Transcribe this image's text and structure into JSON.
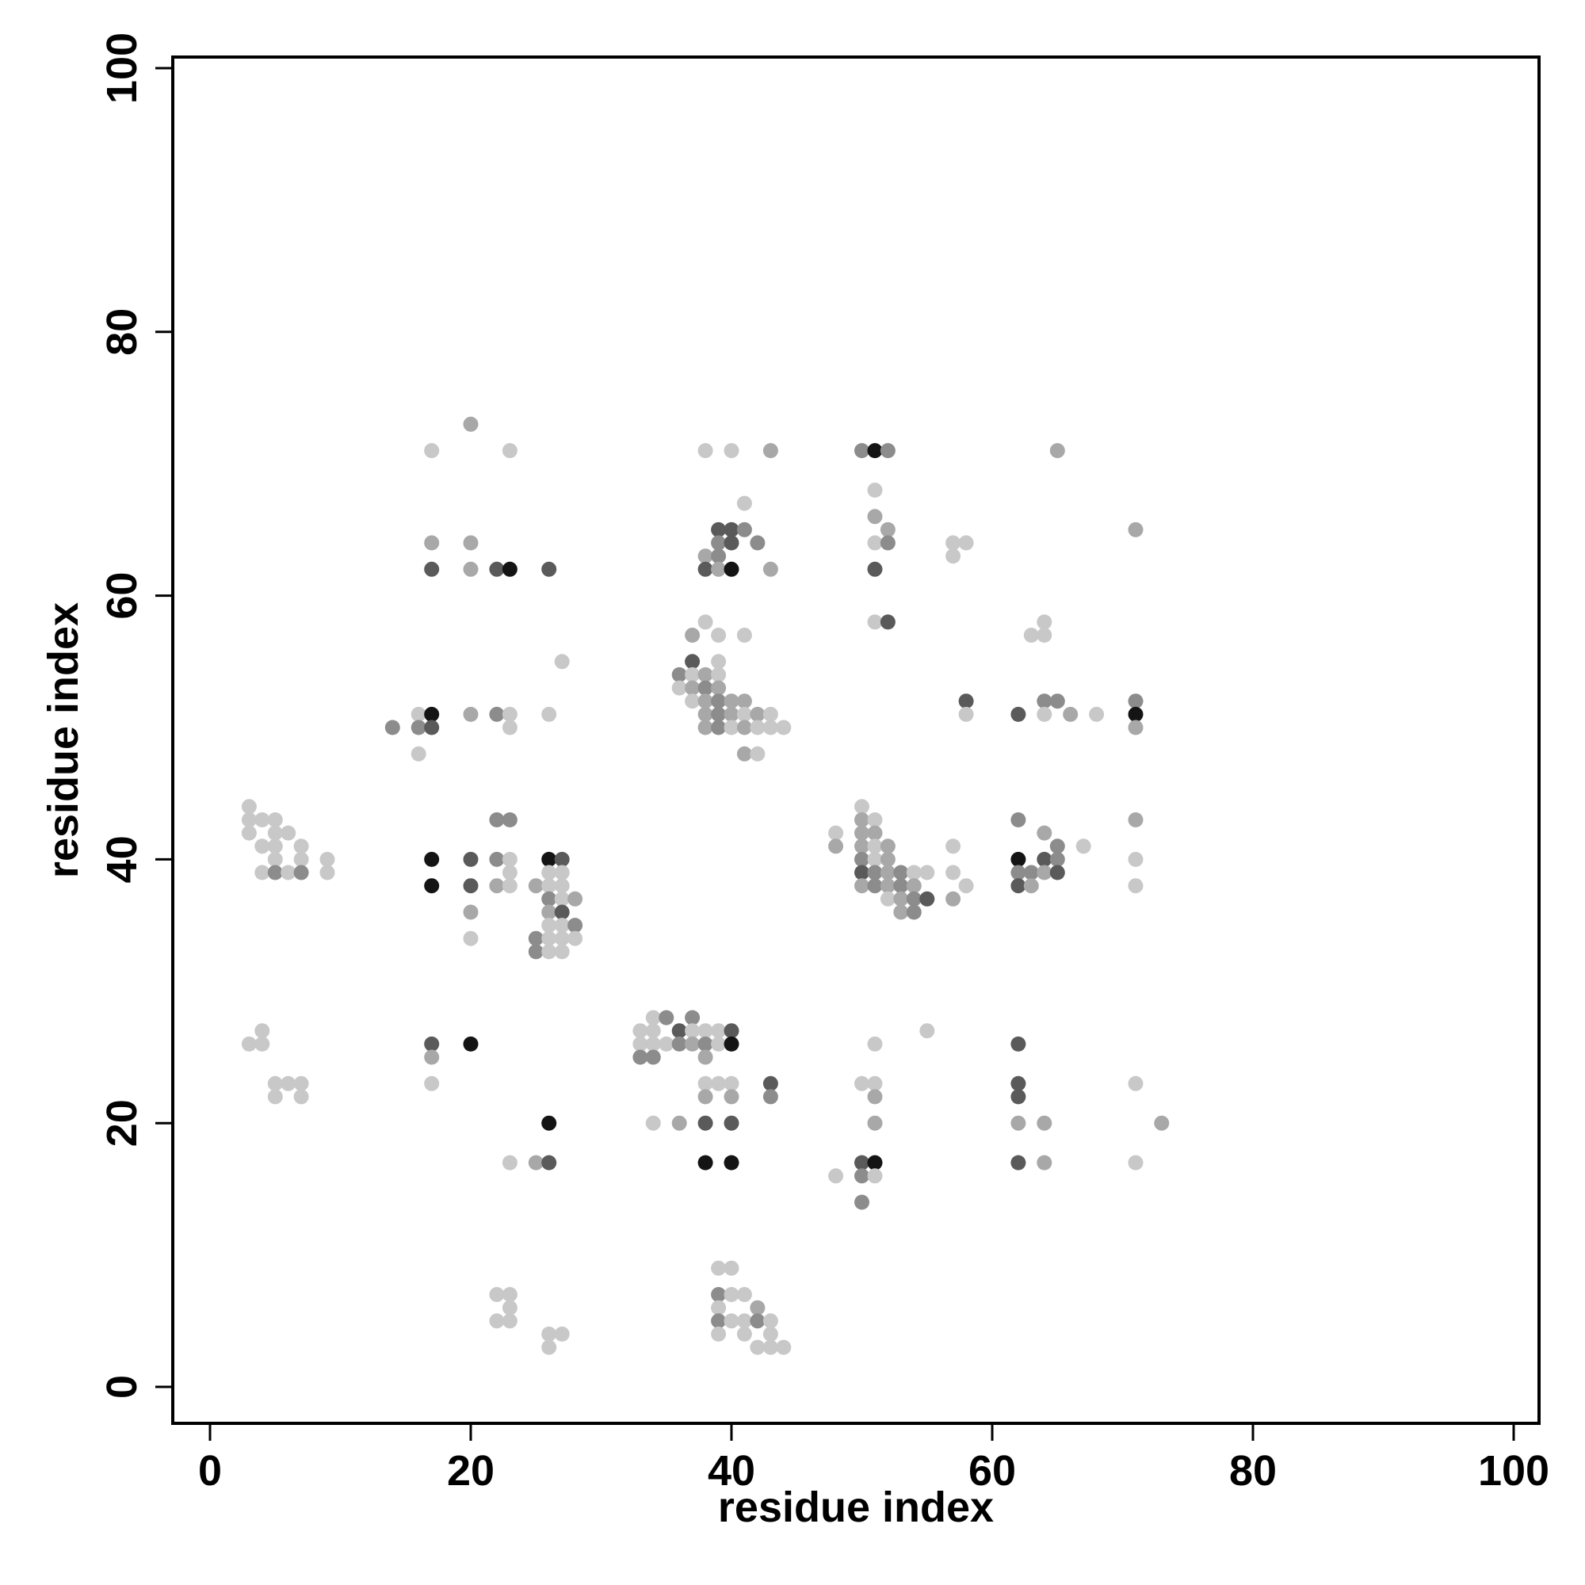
{
  "chart_data": {
    "type": "scatter",
    "title": "",
    "xlabel": "residue index",
    "ylabel": "residue index",
    "xlim": [
      0,
      100
    ],
    "ylim": [
      0,
      100
    ],
    "xticks": [
      0,
      20,
      40,
      60,
      80,
      100
    ],
    "yticks": [
      0,
      20,
      40,
      60,
      80,
      100
    ],
    "grid": false,
    "legend": "none",
    "point_color_shades": {
      "light": "#c8c8c8",
      "mid_light": "#a8a8a8",
      "mid": "#8c8c8c",
      "dark": "#5a5a5a",
      "black": "#141414"
    },
    "points": [
      [
        20,
        73,
        "mid_light"
      ],
      [
        17,
        71,
        "light"
      ],
      [
        23,
        71,
        "light"
      ],
      [
        38,
        71,
        "light"
      ],
      [
        40,
        71,
        "light"
      ],
      [
        43,
        71,
        "mid_light"
      ],
      [
        50,
        71,
        "mid"
      ],
      [
        51,
        71,
        "black"
      ],
      [
        52,
        71,
        "mid"
      ],
      [
        65,
        71,
        "mid_light"
      ],
      [
        51,
        68,
        "light"
      ],
      [
        41,
        67,
        "light"
      ],
      [
        51,
        66,
        "mid_light"
      ],
      [
        39,
        65,
        "dark"
      ],
      [
        40,
        65,
        "dark"
      ],
      [
        41,
        65,
        "mid"
      ],
      [
        52,
        65,
        "mid_light"
      ],
      [
        71,
        65,
        "mid_light"
      ],
      [
        17,
        64,
        "mid_light"
      ],
      [
        20,
        64,
        "mid_light"
      ],
      [
        39,
        64,
        "mid"
      ],
      [
        40,
        64,
        "dark"
      ],
      [
        42,
        64,
        "mid"
      ],
      [
        51,
        64,
        "light"
      ],
      [
        52,
        64,
        "mid"
      ],
      [
        57,
        64,
        "light"
      ],
      [
        58,
        64,
        "light"
      ],
      [
        38,
        63,
        "mid_light"
      ],
      [
        39,
        63,
        "mid"
      ],
      [
        57,
        63,
        "light"
      ],
      [
        17,
        62,
        "dark"
      ],
      [
        20,
        62,
        "mid_light"
      ],
      [
        22,
        62,
        "dark"
      ],
      [
        23,
        62,
        "black"
      ],
      [
        26,
        62,
        "dark"
      ],
      [
        38,
        62,
        "dark"
      ],
      [
        39,
        62,
        "mid_light"
      ],
      [
        40,
        62,
        "black"
      ],
      [
        43,
        62,
        "mid_light"
      ],
      [
        51,
        62,
        "dark"
      ],
      [
        38,
        58,
        "light"
      ],
      [
        51,
        58,
        "light"
      ],
      [
        52,
        58,
        "dark"
      ],
      [
        64,
        58,
        "light"
      ],
      [
        37,
        57,
        "mid_light"
      ],
      [
        39,
        57,
        "light"
      ],
      [
        41,
        57,
        "light"
      ],
      [
        63,
        57,
        "light"
      ],
      [
        64,
        57,
        "light"
      ],
      [
        37,
        55,
        "dark"
      ],
      [
        39,
        55,
        "light"
      ],
      [
        27,
        55,
        "light"
      ],
      [
        36,
        54,
        "mid"
      ],
      [
        37,
        54,
        "light"
      ],
      [
        38,
        54,
        "mid_light"
      ],
      [
        39,
        54,
        "light"
      ],
      [
        36,
        53,
        "light"
      ],
      [
        37,
        53,
        "mid_light"
      ],
      [
        38,
        53,
        "mid"
      ],
      [
        39,
        53,
        "mid_light"
      ],
      [
        37,
        52,
        "light"
      ],
      [
        38,
        52,
        "mid_light"
      ],
      [
        39,
        52,
        "mid"
      ],
      [
        40,
        52,
        "mid_light"
      ],
      [
        41,
        52,
        "mid_light"
      ],
      [
        58,
        52,
        "dark"
      ],
      [
        64,
        52,
        "mid"
      ],
      [
        65,
        52,
        "mid"
      ],
      [
        71,
        52,
        "mid"
      ],
      [
        16,
        51,
        "light"
      ],
      [
        17,
        51,
        "black"
      ],
      [
        20,
        51,
        "mid_light"
      ],
      [
        22,
        51,
        "mid"
      ],
      [
        23,
        51,
        "light"
      ],
      [
        26,
        51,
        "light"
      ],
      [
        38,
        51,
        "mid_light"
      ],
      [
        39,
        51,
        "mid"
      ],
      [
        40,
        51,
        "mid_light"
      ],
      [
        41,
        51,
        "light"
      ],
      [
        42,
        51,
        "mid_light"
      ],
      [
        43,
        51,
        "light"
      ],
      [
        58,
        51,
        "light"
      ],
      [
        62,
        51,
        "dark"
      ],
      [
        64,
        51,
        "light"
      ],
      [
        66,
        51,
        "mid_light"
      ],
      [
        68,
        51,
        "light"
      ],
      [
        71,
        51,
        "black"
      ],
      [
        14,
        50,
        "mid"
      ],
      [
        16,
        50,
        "mid"
      ],
      [
        17,
        50,
        "dark"
      ],
      [
        23,
        50,
        "light"
      ],
      [
        38,
        50,
        "mid_light"
      ],
      [
        39,
        50,
        "mid"
      ],
      [
        40,
        50,
        "light"
      ],
      [
        41,
        50,
        "mid_light"
      ],
      [
        42,
        50,
        "light"
      ],
      [
        43,
        50,
        "light"
      ],
      [
        44,
        50,
        "light"
      ],
      [
        71,
        50,
        "mid_light"
      ],
      [
        16,
        48,
        "light"
      ],
      [
        41,
        48,
        "mid_light"
      ],
      [
        42,
        48,
        "light"
      ],
      [
        3,
        44,
        "light"
      ],
      [
        50,
        44,
        "light"
      ],
      [
        3,
        43,
        "light"
      ],
      [
        4,
        43,
        "light"
      ],
      [
        5,
        43,
        "light"
      ],
      [
        22,
        43,
        "mid"
      ],
      [
        23,
        43,
        "mid"
      ],
      [
        50,
        43,
        "mid_light"
      ],
      [
        51,
        43,
        "light"
      ],
      [
        62,
        43,
        "mid"
      ],
      [
        71,
        43,
        "mid_light"
      ],
      [
        3,
        42,
        "light"
      ],
      [
        5,
        42,
        "light"
      ],
      [
        6,
        42,
        "light"
      ],
      [
        48,
        42,
        "light"
      ],
      [
        50,
        42,
        "mid_light"
      ],
      [
        51,
        42,
        "mid_light"
      ],
      [
        64,
        42,
        "mid_light"
      ],
      [
        4,
        41,
        "light"
      ],
      [
        5,
        41,
        "light"
      ],
      [
        7,
        41,
        "light"
      ],
      [
        48,
        41,
        "mid_light"
      ],
      [
        50,
        41,
        "mid_light"
      ],
      [
        51,
        41,
        "light"
      ],
      [
        52,
        41,
        "mid_light"
      ],
      [
        57,
        41,
        "light"
      ],
      [
        65,
        41,
        "mid"
      ],
      [
        67,
        41,
        "light"
      ],
      [
        5,
        40,
        "light"
      ],
      [
        7,
        40,
        "light"
      ],
      [
        9,
        40,
        "light"
      ],
      [
        17,
        40,
        "black"
      ],
      [
        20,
        40,
        "dark"
      ],
      [
        22,
        40,
        "mid"
      ],
      [
        23,
        40,
        "light"
      ],
      [
        26,
        40,
        "black"
      ],
      [
        27,
        40,
        "dark"
      ],
      [
        50,
        40,
        "mid"
      ],
      [
        51,
        40,
        "light"
      ],
      [
        52,
        40,
        "mid_light"
      ],
      [
        62,
        40,
        "black"
      ],
      [
        64,
        40,
        "dark"
      ],
      [
        65,
        40,
        "mid"
      ],
      [
        71,
        40,
        "light"
      ],
      [
        4,
        39,
        "light"
      ],
      [
        5,
        39,
        "mid"
      ],
      [
        6,
        39,
        "light"
      ],
      [
        7,
        39,
        "mid"
      ],
      [
        9,
        39,
        "light"
      ],
      [
        23,
        39,
        "light"
      ],
      [
        26,
        39,
        "light"
      ],
      [
        27,
        39,
        "light"
      ],
      [
        50,
        39,
        "dark"
      ],
      [
        51,
        39,
        "mid"
      ],
      [
        52,
        39,
        "mid_light"
      ],
      [
        53,
        39,
        "mid"
      ],
      [
        54,
        39,
        "light"
      ],
      [
        55,
        39,
        "light"
      ],
      [
        57,
        39,
        "light"
      ],
      [
        62,
        39,
        "mid"
      ],
      [
        63,
        39,
        "mid"
      ],
      [
        64,
        39,
        "mid_light"
      ],
      [
        65,
        39,
        "dark"
      ],
      [
        17,
        38,
        "black"
      ],
      [
        20,
        38,
        "dark"
      ],
      [
        22,
        38,
        "mid_light"
      ],
      [
        23,
        38,
        "light"
      ],
      [
        25,
        38,
        "mid_light"
      ],
      [
        26,
        38,
        "light"
      ],
      [
        27,
        38,
        "light"
      ],
      [
        50,
        38,
        "mid_light"
      ],
      [
        51,
        38,
        "mid"
      ],
      [
        52,
        38,
        "mid_light"
      ],
      [
        53,
        38,
        "mid"
      ],
      [
        54,
        38,
        "mid_light"
      ],
      [
        58,
        38,
        "light"
      ],
      [
        62,
        38,
        "dark"
      ],
      [
        63,
        38,
        "mid_light"
      ],
      [
        71,
        38,
        "light"
      ],
      [
        26,
        37,
        "mid"
      ],
      [
        27,
        37,
        "light"
      ],
      [
        28,
        37,
        "mid_light"
      ],
      [
        52,
        37,
        "light"
      ],
      [
        53,
        37,
        "mid_light"
      ],
      [
        54,
        37,
        "mid"
      ],
      [
        55,
        37,
        "dark"
      ],
      [
        57,
        37,
        "mid_light"
      ],
      [
        20,
        36,
        "mid_light"
      ],
      [
        26,
        36,
        "mid_light"
      ],
      [
        27,
        36,
        "dark"
      ],
      [
        53,
        36,
        "mid_light"
      ],
      [
        54,
        36,
        "mid"
      ],
      [
        26,
        35,
        "light"
      ],
      [
        27,
        35,
        "light"
      ],
      [
        28,
        35,
        "mid"
      ],
      [
        20,
        34,
        "light"
      ],
      [
        25,
        34,
        "mid"
      ],
      [
        26,
        34,
        "light"
      ],
      [
        27,
        34,
        "light"
      ],
      [
        28,
        34,
        "light"
      ],
      [
        25,
        33,
        "mid"
      ],
      [
        26,
        33,
        "light"
      ],
      [
        27,
        33,
        "light"
      ],
      [
        34,
        28,
        "light"
      ],
      [
        35,
        28,
        "mid"
      ],
      [
        37,
        28,
        "mid"
      ],
      [
        33,
        27,
        "light"
      ],
      [
        34,
        27,
        "light"
      ],
      [
        36,
        27,
        "dark"
      ],
      [
        37,
        27,
        "light"
      ],
      [
        38,
        27,
        "light"
      ],
      [
        39,
        27,
        "light"
      ],
      [
        40,
        27,
        "dark"
      ],
      [
        4,
        27,
        "light"
      ],
      [
        55,
        27,
        "light"
      ],
      [
        3,
        26,
        "light"
      ],
      [
        4,
        26,
        "light"
      ],
      [
        17,
        26,
        "dark"
      ],
      [
        20,
        26,
        "black"
      ],
      [
        33,
        26,
        "light"
      ],
      [
        34,
        26,
        "light"
      ],
      [
        35,
        26,
        "light"
      ],
      [
        36,
        26,
        "mid"
      ],
      [
        37,
        26,
        "mid_light"
      ],
      [
        38,
        26,
        "mid"
      ],
      [
        39,
        26,
        "light"
      ],
      [
        40,
        26,
        "black"
      ],
      [
        51,
        26,
        "light"
      ],
      [
        62,
        26,
        "dark"
      ],
      [
        17,
        25,
        "mid_light"
      ],
      [
        33,
        25,
        "mid"
      ],
      [
        34,
        25,
        "mid"
      ],
      [
        38,
        25,
        "mid_light"
      ],
      [
        5,
        23,
        "light"
      ],
      [
        6,
        23,
        "light"
      ],
      [
        7,
        23,
        "light"
      ],
      [
        17,
        23,
        "light"
      ],
      [
        38,
        23,
        "light"
      ],
      [
        39,
        23,
        "light"
      ],
      [
        40,
        23,
        "light"
      ],
      [
        43,
        23,
        "dark"
      ],
      [
        50,
        23,
        "light"
      ],
      [
        51,
        23,
        "light"
      ],
      [
        62,
        23,
        "dark"
      ],
      [
        71,
        23,
        "light"
      ],
      [
        5,
        22,
        "light"
      ],
      [
        7,
        22,
        "light"
      ],
      [
        38,
        22,
        "mid_light"
      ],
      [
        40,
        22,
        "mid_light"
      ],
      [
        43,
        22,
        "mid"
      ],
      [
        51,
        22,
        "mid_light"
      ],
      [
        62,
        22,
        "dark"
      ],
      [
        26,
        20,
        "black"
      ],
      [
        34,
        20,
        "light"
      ],
      [
        36,
        20,
        "mid_light"
      ],
      [
        38,
        20,
        "dark"
      ],
      [
        40,
        20,
        "dark"
      ],
      [
        51,
        20,
        "mid_light"
      ],
      [
        62,
        20,
        "mid_light"
      ],
      [
        64,
        20,
        "mid_light"
      ],
      [
        73,
        20,
        "mid_light"
      ],
      [
        23,
        17,
        "light"
      ],
      [
        25,
        17,
        "mid_light"
      ],
      [
        26,
        17,
        "dark"
      ],
      [
        38,
        17,
        "black"
      ],
      [
        40,
        17,
        "black"
      ],
      [
        50,
        17,
        "dark"
      ],
      [
        51,
        17,
        "black"
      ],
      [
        62,
        17,
        "dark"
      ],
      [
        64,
        17,
        "mid_light"
      ],
      [
        71,
        17,
        "light"
      ],
      [
        48,
        16,
        "light"
      ],
      [
        50,
        16,
        "mid"
      ],
      [
        51,
        16,
        "light"
      ],
      [
        50,
        14,
        "mid"
      ],
      [
        39,
        9,
        "light"
      ],
      [
        40,
        9,
        "light"
      ],
      [
        22,
        7,
        "light"
      ],
      [
        23,
        7,
        "light"
      ],
      [
        39,
        7,
        "mid"
      ],
      [
        40,
        7,
        "light"
      ],
      [
        41,
        7,
        "light"
      ],
      [
        23,
        6,
        "light"
      ],
      [
        39,
        6,
        "light"
      ],
      [
        42,
        6,
        "mid_light"
      ],
      [
        22,
        5,
        "light"
      ],
      [
        23,
        5,
        "light"
      ],
      [
        39,
        5,
        "mid"
      ],
      [
        40,
        5,
        "light"
      ],
      [
        41,
        5,
        "light"
      ],
      [
        42,
        5,
        "mid"
      ],
      [
        43,
        5,
        "light"
      ],
      [
        26,
        4,
        "light"
      ],
      [
        27,
        4,
        "light"
      ],
      [
        39,
        4,
        "light"
      ],
      [
        41,
        4,
        "light"
      ],
      [
        43,
        4,
        "light"
      ],
      [
        26,
        3,
        "light"
      ],
      [
        42,
        3,
        "light"
      ],
      [
        43,
        3,
        "light"
      ],
      [
        44,
        3,
        "light"
      ]
    ]
  }
}
